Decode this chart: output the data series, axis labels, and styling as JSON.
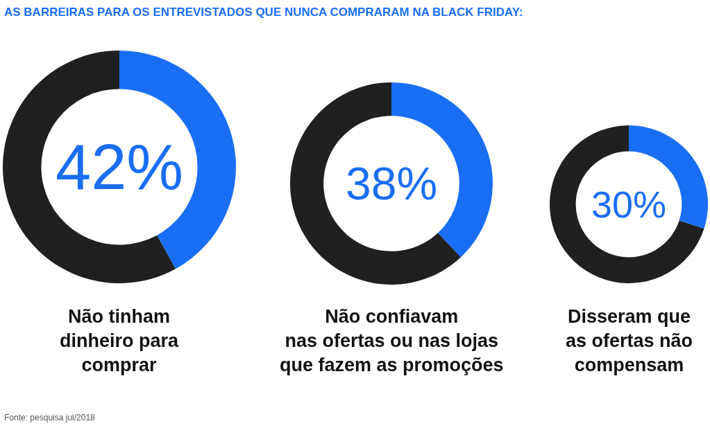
{
  "chart_data": [
    {
      "type": "donut",
      "title": "AS BARREIRAS PARA OS ENTREVISTADOS QUE NUNCA COMPRARAM NA BLACK FRIDAY:",
      "xlabel": "Não tinham\ndinheiro para\ncomprar",
      "categories": [
        null,
        null
      ],
      "values": [
        42,
        58
      ],
      "colors": [
        "#1a6ef5",
        "#202020"
      ],
      "value_labels": [
        "42%",
        null
      ],
      "annotations": [
        "Fonte: pesquisa jul/2018"
      ]
    },
    {
      "type": "donut",
      "xlabel": "Não confiavam\nnas ofertas ou nas lojas\nque fazem as promoções",
      "categories": [
        null,
        null
      ],
      "values": [
        38,
        62
      ],
      "colors": [
        "#1a6ef5",
        "#202020"
      ],
      "value_labels": [
        "38%",
        null
      ]
    },
    {
      "type": "donut",
      "xlabel": "Disseram que\nas ofertas não\ncompensam",
      "categories": [
        null,
        null
      ],
      "values": [
        30,
        70
      ],
      "colors": [
        "#1a6ef5",
        "#202020"
      ],
      "value_labels": [
        "30%",
        null
      ]
    }
  ]
}
